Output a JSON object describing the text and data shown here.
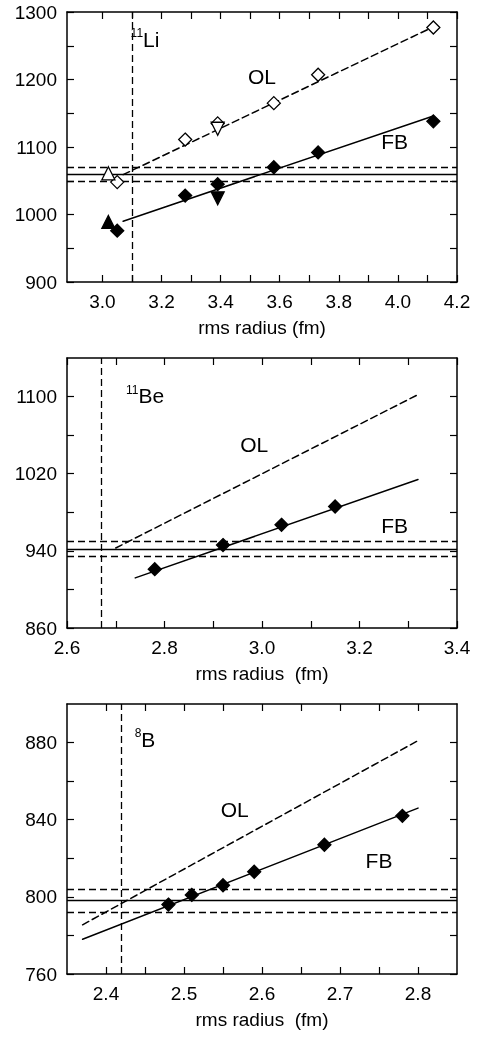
{
  "chart_data": [
    {
      "type": "scatter",
      "xlabel": "rms radius (fm)",
      "xlim": [
        2.88,
        4.2
      ],
      "ylim": [
        900,
        1300
      ],
      "xticks": [
        {
          "value": 3,
          "label": "3.0"
        },
        {
          "value": 3.1,
          "label": null
        },
        3.2,
        {
          "value": 3.3,
          "label": null
        },
        3.4,
        {
          "value": 3.5,
          "label": null
        },
        3.6,
        {
          "value": 3.7,
          "label": null
        },
        3.8,
        {
          "value": 3.9,
          "label": null
        },
        {
          "value": 4,
          "label": "4.0"
        },
        {
          "value": 4.1,
          "label": null
        },
        4.2
      ],
      "yticks": [
        900,
        {
          "value": 950,
          "label": null
        },
        1000,
        {
          "value": 1050,
          "label": null
        },
        1100,
        {
          "value": 1150,
          "label": null
        },
        1200,
        {
          "value": 1250,
          "label": null
        },
        1300
      ],
      "series": [
        {
          "type": "line",
          "x": [
            3.07,
            4.12
          ],
          "values": [
            1059,
            1278
          ],
          "line_style": "dashed",
          "marker": "none",
          "color": "#000000"
        },
        {
          "type": "line",
          "x": [
            3.07,
            4.12
          ],
          "values": [
            990,
            1146
          ],
          "line_style": "solid",
          "marker": "none",
          "color": "#000000"
        },
        {
          "x": [
            3.05,
            3.28,
            3.39,
            3.58,
            3.73,
            4.12
          ],
          "values": [
            1048,
            1111,
            1135,
            1165,
            1207,
            1277
          ],
          "marker": "diamond",
          "color": "#ffffff"
        },
        {
          "type": "scatter",
          "x": [
            3.02
          ],
          "values": [
            1061
          ],
          "marker": "triangle",
          "color": "#ffffff"
        },
        {
          "type": "scatter",
          "x": [
            3.39
          ],
          "values": [
            1127
          ],
          "marker": "triangle-down",
          "color": "#ffffff"
        },
        {
          "type": "scatter",
          "x": [
            3.05,
            3.28,
            3.39,
            3.58,
            3.73,
            4.12
          ],
          "values": [
            976,
            1028,
            1045,
            1070,
            1092,
            1138
          ],
          "marker": "diamond",
          "color": "#000000"
        },
        {
          "type": "scatter",
          "x": [
            3.02
          ],
          "values": [
            989
          ],
          "marker": "triangle",
          "color": "#000000"
        },
        {
          "type": "scatter",
          "x": [
            3.39
          ],
          "values": [
            1024
          ],
          "marker": "triangle-down",
          "color": "#000000"
        }
      ],
      "ref_lines": [
        {
          "axis": "y",
          "value": 1060,
          "line_style": "solid"
        },
        {
          "axis": "y",
          "value": 1070,
          "line_style": "dashed"
        },
        {
          "axis": "y",
          "value": 1050,
          "line_style": "dashed"
        },
        {
          "axis": "x",
          "value": 3.1,
          "line_style": "dashed"
        }
      ],
      "annotations": [
        "$^{11}$Li",
        "OL",
        "FB"
      ]
    },
    {
      "type": "scatter",
      "xlabel": "rms radius  (fm)",
      "xlim": [
        2.6,
        3.4
      ],
      "ylim": [
        860,
        1140
      ],
      "xticks": [
        2.6,
        {
          "value": 2.7,
          "label": null
        },
        2.8,
        {
          "value": 2.9,
          "label": null
        },
        {
          "value": 3,
          "label": "3.0"
        },
        {
          "value": 3.1,
          "label": null
        },
        3.2,
        {
          "value": 3.3,
          "label": null
        },
        3.4
      ],
      "yticks": [
        860,
        {
          "value": 900,
          "label": null
        },
        940,
        {
          "value": 980,
          "label": null
        },
        1020,
        {
          "value": 1060,
          "label": null
        },
        1100
      ],
      "series": [
        {
          "type": "line",
          "x": [
            2.7,
            3.32
          ],
          "values": [
            943,
            1102
          ],
          "line_style": "dashed",
          "marker": "none",
          "color": "#000000"
        },
        {
          "type": "line",
          "x": [
            2.74,
            3.32
          ],
          "values": [
            912,
            1014
          ],
          "line_style": "solid",
          "marker": "none",
          "color": "#000000"
        },
        {
          "x": [
            2.78,
            2.92,
            3.04,
            3.15
          ],
          "values": [
            921,
            946,
            967,
            986
          ],
          "marker": "diamond",
          "color": "#000000"
        }
      ],
      "ref_lines": [
        {
          "axis": "y",
          "value": 942,
          "line_style": "solid"
        },
        {
          "axis": "y",
          "value": 950,
          "line_style": "dashed"
        },
        {
          "axis": "y",
          "value": 934,
          "line_style": "dashed"
        },
        {
          "axis": "x",
          "value": 2.67,
          "line_style": "dashed"
        }
      ],
      "annotations": [
        "$^{11}$Be",
        "OL",
        "FB"
      ]
    },
    {
      "type": "scatter",
      "xlabel": "rms radius  (fm)",
      "xlim": [
        2.35,
        2.85
      ],
      "ylim": [
        760,
        900
      ],
      "xticks": [
        2.4,
        {
          "value": 2.45,
          "label": null
        },
        2.5,
        {
          "value": 2.55,
          "label": null
        },
        2.6,
        {
          "value": 2.65,
          "label": null
        },
        2.7,
        {
          "value": 2.75,
          "label": null
        },
        2.8
      ],
      "yticks": [
        760,
        {
          "value": 780,
          "label": null
        },
        800,
        {
          "value": 820,
          "label": null
        },
        840,
        {
          "value": 860,
          "label": null
        },
        880
      ],
      "series": [
        {
          "type": "line",
          "x": [
            2.37,
            2.8
          ],
          "values": [
            785.5,
            881
          ],
          "line_style": "dashed",
          "marker": "none",
          "color": "#000000"
        },
        {
          "type": "line",
          "x": [
            2.37,
            2.8
          ],
          "values": [
            778,
            846
          ],
          "line_style": "solid",
          "marker": "none",
          "color": "#000000"
        },
        {
          "x": [
            2.48,
            2.51,
            2.55,
            2.59,
            2.68,
            2.78
          ],
          "values": [
            796,
            801,
            806,
            813,
            827,
            842
          ],
          "marker": "diamond",
          "color": "#000000"
        }
      ],
      "ref_lines": [
        {
          "axis": "y",
          "value": 798,
          "line_style": "solid"
        },
        {
          "axis": "y",
          "value": 804,
          "line_style": "dashed"
        },
        {
          "axis": "y",
          "value": 792,
          "line_style": "dashed"
        },
        {
          "axis": "x",
          "value": 2.42,
          "line_style": "dashed"
        }
      ],
      "annotations": [
        "$^{8}$B",
        "OL",
        "FB"
      ]
    }
  ]
}
